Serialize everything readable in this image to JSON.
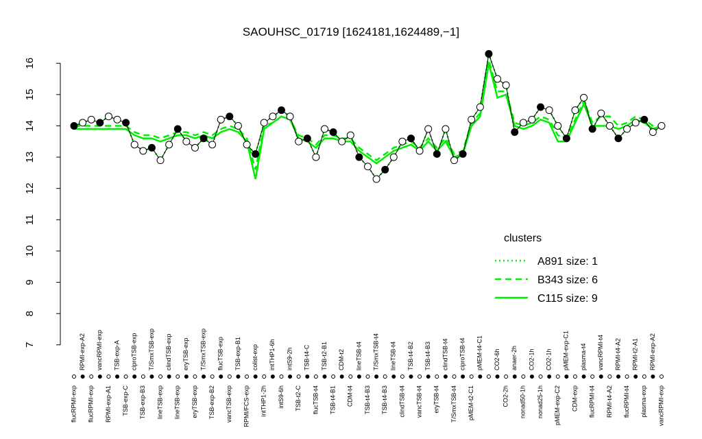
{
  "chart_data": {
    "type": "line",
    "title": "SAOUHSC_01719 [1624181,1624489,−1]",
    "categories": [
      "flucRPMI-exp",
      "RPMI-exp-A2",
      "flucRPMI-exp",
      "vancRPMI-exp",
      "RPMI-exp-A1",
      "TSB-exp-A",
      "TSB-exp-C",
      "ciproTSB-exp",
      "TSB-exp-B3",
      "T/SmxTSB-exp",
      "lineTSB-exp",
      "clindTSB-exp",
      "lineTSB-exp",
      "eryTSB-exp",
      "eryTSB-exp",
      "T/SmxTSB-exp",
      "TSB-exp-B2",
      "flucTSB-exp",
      "vancTSB-exp",
      "TSB-exp-B1",
      "RPMI/FCS-exp",
      "colist-exp",
      "intTHP1-2h",
      "intTHP1-6h",
      "intS9-6h",
      "intS9-2h",
      "TSB-t2-C",
      "TSB-t4-C",
      "flucTSB-t4",
      "TSB-t2-B1",
      "TSB-t4-B1",
      "CDM-t2",
      "CDM-t4",
      "lineTSB-t4",
      "TSB-t4-B3",
      "T/SmxTSB-t4",
      "TSB-t4-B3",
      "lineTSB-t4",
      "clindTSB-t4",
      "TSB-t4-B2",
      "vancTSB-t4",
      "TSB-t4-B3",
      "eryTSB-t4",
      "clindTSB-t4",
      "T/SmxTSB-t4",
      "ciproTSB-t4",
      "pMEM-t2-C1",
      "pMEM-t4-C1",
      null,
      "CO2-6h",
      "CO2-2h",
      "anaer-2h",
      "nonad50-1h",
      "CO2-1h",
      "nonad25-1h",
      "CO2-1h",
      "pMEM-exp-C2",
      "pMEM-exp-C1",
      "CDM-exp",
      "plasma-t4",
      "flucRPMI-t4",
      "vancRPMI-t4",
      "RPMI-t4-A2",
      "RPMI-t4-A2",
      "flucRPMI-t4",
      "RPMI-t2-A1",
      "plasma-exp",
      "RPMI-exp-A2",
      "vancRPMI-exp"
    ],
    "values": [
      14.0,
      14.1,
      14.2,
      14.1,
      14.3,
      14.2,
      14.1,
      13.4,
      13.2,
      13.3,
      12.9,
      13.4,
      13.9,
      13.5,
      13.3,
      13.6,
      13.4,
      14.2,
      14.3,
      14.0,
      13.4,
      13.1,
      14.1,
      14.3,
      14.5,
      14.3,
      13.5,
      13.6,
      13.0,
      13.9,
      13.8,
      13.5,
      13.7,
      13.0,
      12.7,
      12.3,
      12.6,
      13.0,
      13.5,
      13.6,
      13.2,
      13.9,
      13.1,
      13.9,
      12.9,
      13.1,
      14.2,
      14.6,
      16.3,
      15.5,
      15.3,
      13.8,
      14.1,
      14.2,
      14.6,
      14.5,
      14.0,
      13.6,
      14.5,
      14.9,
      13.9,
      14.4,
      14.0,
      13.6,
      13.9,
      14.1,
      14.2,
      13.8,
      14.0
    ],
    "point_color": "#000000",
    "legend_title": "clusters",
    "legend_position": "right",
    "series": [
      {
        "name": "A891 size: 1",
        "color": "#00ee00",
        "dash": "dotted",
        "values": [
          14.0,
          14.1,
          14.2,
          14.1,
          14.3,
          14.2,
          14.1,
          13.4,
          13.2,
          13.3,
          12.9,
          13.4,
          13.9,
          13.5,
          13.3,
          13.6,
          13.4,
          14.2,
          14.3,
          14.0,
          13.4,
          13.1,
          14.1,
          14.3,
          14.5,
          14.3,
          13.5,
          13.6,
          13.0,
          13.9,
          13.8,
          13.5,
          13.7,
          13.0,
          12.7,
          12.3,
          12.6,
          13.0,
          13.5,
          13.6,
          13.2,
          13.9,
          13.1,
          13.9,
          12.9,
          13.1,
          14.2,
          14.6,
          16.3,
          15.5,
          15.3,
          13.8,
          14.1,
          14.2,
          14.6,
          14.5,
          14.0,
          13.6,
          14.5,
          14.9,
          13.9,
          14.4,
          14.0,
          13.6,
          13.9,
          14.1,
          14.2,
          13.8,
          14.0
        ]
      },
      {
        "name": "B343 size: 6",
        "color": "#00ee00",
        "dash": "dashed",
        "values": [
          14.0,
          14.0,
          14.0,
          14.0,
          14.0,
          14.0,
          14.0,
          13.8,
          13.7,
          13.7,
          13.6,
          13.7,
          13.8,
          13.8,
          13.7,
          13.8,
          13.7,
          13.9,
          14.0,
          13.9,
          13.6,
          12.6,
          14.0,
          14.1,
          14.3,
          14.2,
          13.7,
          13.6,
          13.4,
          13.7,
          13.7,
          13.6,
          13.6,
          13.3,
          13.1,
          12.9,
          13.1,
          13.3,
          13.4,
          13.5,
          13.3,
          13.6,
          13.3,
          13.6,
          13.1,
          13.2,
          14.1,
          14.4,
          16.1,
          15.1,
          15.1,
          14.1,
          14.0,
          14.1,
          14.3,
          14.2,
          13.7,
          13.6,
          14.2,
          14.8,
          14.1,
          14.3,
          14.3,
          14.0,
          14.1,
          14.3,
          14.2,
          14.0,
          14.0
        ]
      },
      {
        "name": "C115 size: 9",
        "color": "#00ee00",
        "dash": "solid",
        "values": [
          13.9,
          13.9,
          13.9,
          13.9,
          13.9,
          13.9,
          13.9,
          13.7,
          13.6,
          13.6,
          13.5,
          13.6,
          13.7,
          13.7,
          13.6,
          13.7,
          13.6,
          13.8,
          13.9,
          13.8,
          13.5,
          12.3,
          13.9,
          14.1,
          14.3,
          14.2,
          13.6,
          13.5,
          13.3,
          13.6,
          13.6,
          13.5,
          13.5,
          13.2,
          13.0,
          12.8,
          13.0,
          13.2,
          13.3,
          13.4,
          13.2,
          13.5,
          13.2,
          13.5,
          13.0,
          13.1,
          14.0,
          14.3,
          16.0,
          14.9,
          15.0,
          14.0,
          13.9,
          14.0,
          14.2,
          14.1,
          13.5,
          13.5,
          14.1,
          14.7,
          14.0,
          14.0,
          14.0,
          13.9,
          14.0,
          14.2,
          14.1,
          13.9,
          14.0
        ]
      }
    ],
    "ylim": [
      6.6,
      16.4
    ],
    "yticks": [
      7,
      8,
      9,
      10,
      11,
      12,
      13,
      14,
      15,
      16
    ]
  }
}
